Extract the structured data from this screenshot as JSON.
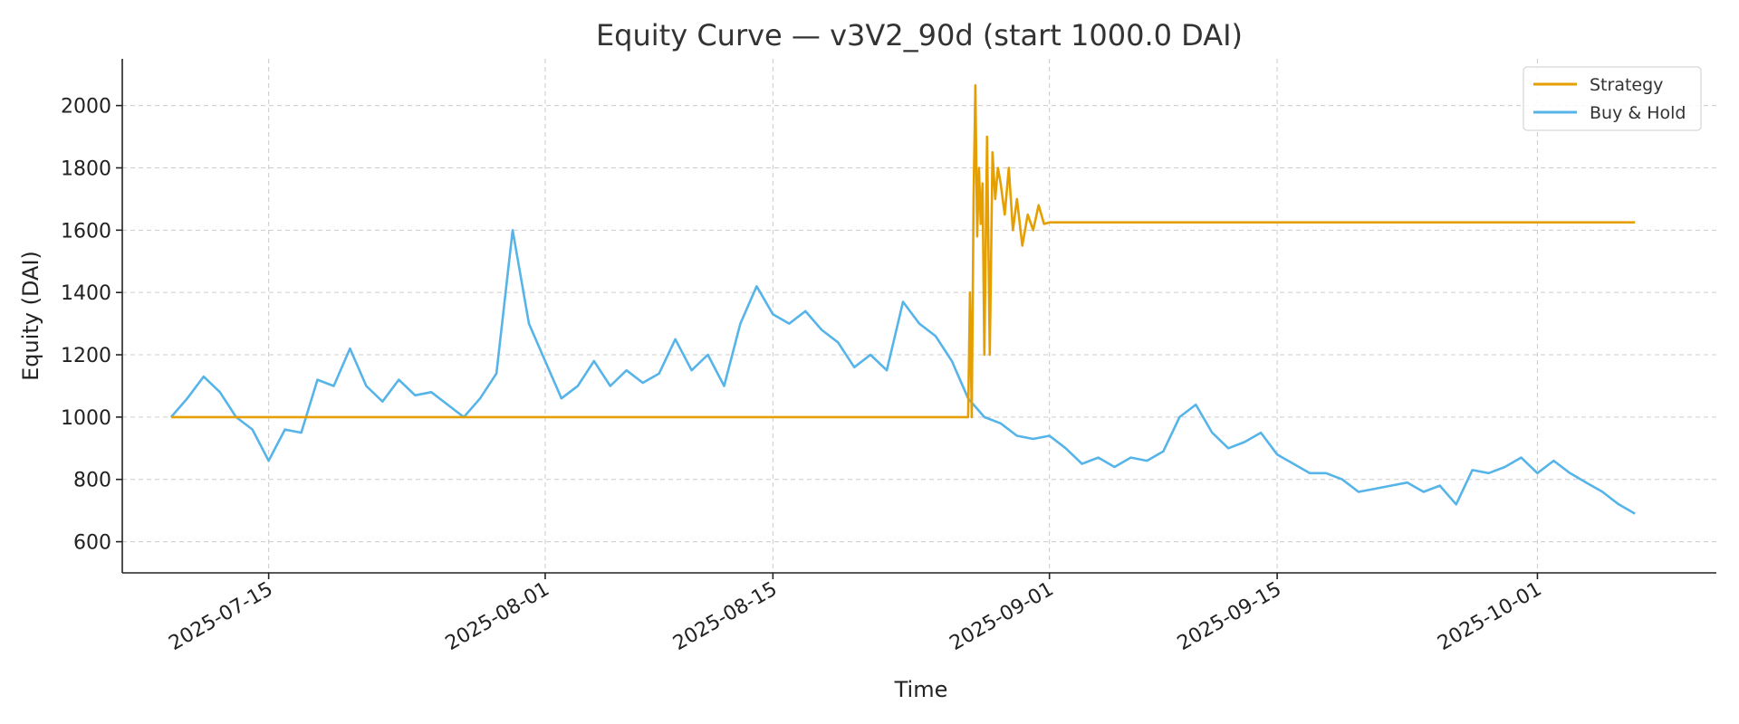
{
  "chart_data": {
    "type": "line",
    "title": "Equity Curve — v3V2_90d (start 1000.0 DAI)",
    "xlabel": "Time",
    "ylabel": "Equity (DAI)",
    "x_ticks": [
      "2025-07-15",
      "2025-08-01",
      "2025-08-15",
      "2025-09-01",
      "2025-09-15",
      "2025-10-01"
    ],
    "y_ticks": [
      600,
      800,
      1000,
      1200,
      1400,
      1600,
      1800,
      2000
    ],
    "xlim": [
      "2025-07-06",
      "2025-10-12"
    ],
    "ylim": [
      500,
      2150
    ],
    "grid": true,
    "legend_position": "top-right",
    "colors": {
      "Strategy": "#E69F00",
      "Buy & Hold": "#56B4E9"
    },
    "series": [
      {
        "name": "Strategy",
        "x": [
          "2025-07-09",
          "2025-08-27",
          "2025-08-27",
          "2025-08-27",
          "2025-08-27",
          "2025-08-27",
          "2025-08-27",
          "2025-08-27",
          "2025-08-27",
          "2025-08-27",
          "2025-08-28",
          "2025-08-28",
          "2025-08-28",
          "2025-08-28",
          "2025-08-28",
          "2025-08-28",
          "2025-08-29",
          "2025-08-29",
          "2025-08-29",
          "2025-08-29",
          "2025-08-30",
          "2025-08-30",
          "2025-08-30",
          "2025-08-31",
          "2025-08-31",
          "2025-08-31",
          "2025-09-01",
          "2025-09-05",
          "2025-09-15",
          "2025-10-01",
          "2025-10-07"
        ],
        "y": [
          1000,
          1000,
          1400,
          1000,
          1700,
          2065,
          1580,
          1800,
          1620,
          1750,
          1200,
          1900,
          1200,
          1850,
          1700,
          1800,
          1750,
          1650,
          1800,
          1600,
          1700,
          1550,
          1650,
          1600,
          1680,
          1620,
          1625,
          1625,
          1625,
          1625,
          1625
        ]
      },
      {
        "name": "Buy & Hold",
        "x": [
          "2025-07-09",
          "2025-07-10",
          "2025-07-11",
          "2025-07-12",
          "2025-07-13",
          "2025-07-14",
          "2025-07-15",
          "2025-07-16",
          "2025-07-17",
          "2025-07-18",
          "2025-07-19",
          "2025-07-20",
          "2025-07-21",
          "2025-07-22",
          "2025-07-23",
          "2025-07-24",
          "2025-07-25",
          "2025-07-26",
          "2025-07-27",
          "2025-07-28",
          "2025-07-29",
          "2025-07-30",
          "2025-07-31",
          "2025-08-01",
          "2025-08-02",
          "2025-08-03",
          "2025-08-04",
          "2025-08-05",
          "2025-08-06",
          "2025-08-07",
          "2025-08-08",
          "2025-08-09",
          "2025-08-10",
          "2025-08-11",
          "2025-08-12",
          "2025-08-13",
          "2025-08-14",
          "2025-08-15",
          "2025-08-16",
          "2025-08-17",
          "2025-08-18",
          "2025-08-19",
          "2025-08-20",
          "2025-08-21",
          "2025-08-22",
          "2025-08-23",
          "2025-08-24",
          "2025-08-25",
          "2025-08-26",
          "2025-08-27",
          "2025-08-28",
          "2025-08-29",
          "2025-08-30",
          "2025-08-31",
          "2025-09-01",
          "2025-09-02",
          "2025-09-03",
          "2025-09-04",
          "2025-09-05",
          "2025-09-06",
          "2025-09-07",
          "2025-09-08",
          "2025-09-09",
          "2025-09-10",
          "2025-09-11",
          "2025-09-12",
          "2025-09-13",
          "2025-09-14",
          "2025-09-15",
          "2025-09-16",
          "2025-09-17",
          "2025-09-18",
          "2025-09-19",
          "2025-09-20",
          "2025-09-21",
          "2025-09-22",
          "2025-09-23",
          "2025-09-24",
          "2025-09-25",
          "2025-09-26",
          "2025-09-27",
          "2025-09-28",
          "2025-09-29",
          "2025-09-30",
          "2025-10-01",
          "2025-10-02",
          "2025-10-03",
          "2025-10-04",
          "2025-10-05",
          "2025-10-06",
          "2025-10-07"
        ],
        "y": [
          1000,
          1060,
          1130,
          1080,
          1000,
          960,
          860,
          960,
          950,
          1120,
          1100,
          1220,
          1100,
          1050,
          1120,
          1070,
          1080,
          1040,
          1000,
          1060,
          1140,
          1600,
          1300,
          1180,
          1060,
          1100,
          1180,
          1100,
          1150,
          1110,
          1140,
          1250,
          1150,
          1200,
          1100,
          1300,
          1420,
          1330,
          1300,
          1340,
          1280,
          1240,
          1160,
          1200,
          1150,
          1370,
          1300,
          1260,
          1180,
          1060,
          1000,
          980,
          940,
          930,
          940,
          900,
          850,
          870,
          840,
          870,
          860,
          890,
          1000,
          1040,
          950,
          900,
          920,
          950,
          880,
          850,
          820,
          820,
          800,
          760,
          770,
          780,
          790,
          760,
          780,
          720,
          830,
          820,
          840,
          870,
          820,
          860,
          820,
          790,
          760,
          720,
          690
        ]
      }
    ]
  }
}
